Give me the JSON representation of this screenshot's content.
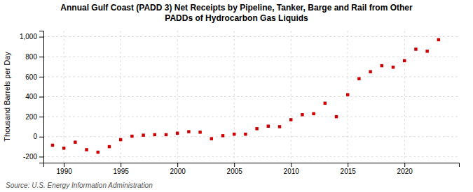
{
  "chart_data": {
    "type": "scatter",
    "title": "Annual Gulf Coast (PADD 3) Net Receipts by Pipeline, Tanker, Barge and Rail from Other\nPADDs of Hydrocarbon Gas Liquids",
    "ylabel": "Thousand Barrels per Day",
    "annotations": [
      "Source: U.S. Energy Information Administration"
    ],
    "x": [
      1989,
      1990,
      1991,
      1992,
      1993,
      1994,
      1995,
      1996,
      1997,
      1998,
      1999,
      2000,
      2001,
      2002,
      2003,
      2004,
      2005,
      2006,
      2007,
      2008,
      2009,
      2010,
      2011,
      2012,
      2013,
      2014,
      2015,
      2016,
      2017,
      2018,
      2019,
      2020,
      2021,
      2022,
      2023
    ],
    "values": [
      -85,
      -115,
      -55,
      -130,
      -155,
      -100,
      -30,
      5,
      15,
      20,
      20,
      35,
      50,
      45,
      -20,
      10,
      25,
      25,
      80,
      105,
      100,
      170,
      220,
      230,
      335,
      200,
      420,
      580,
      650,
      710,
      695,
      760,
      875,
      855,
      970
    ],
    "color": "#cc0000",
    "marker": "square",
    "xlim": [
      1988.2,
      2024.8
    ],
    "xticks": [
      1990,
      1995,
      2000,
      2005,
      2010,
      2015,
      2020
    ],
    "ylim": [
      -260,
      1060
    ],
    "yticks": [
      -200,
      0,
      200,
      400,
      600,
      800,
      {
        "value": 1000,
        "label": "1,000"
      }
    ],
    "grid": true
  }
}
